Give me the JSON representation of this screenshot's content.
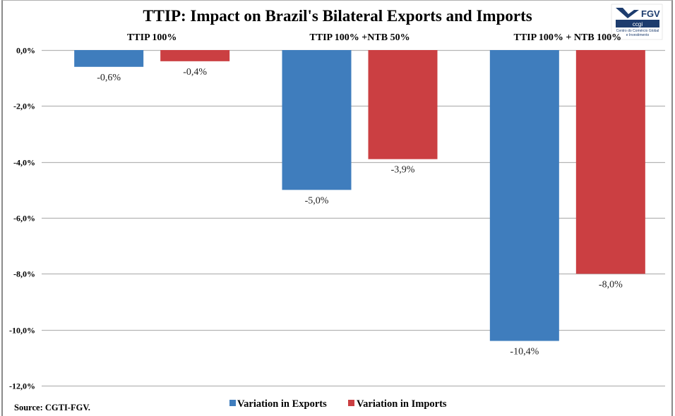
{
  "logo": {
    "brand": "FGV",
    "unit": "ccgi",
    "subtitle_line1": "Centro do Comércio Global",
    "subtitle_line2": "e Investimento"
  },
  "source": "Source: CGTI-FGV.",
  "colors": {
    "exports": "#3f7dbd",
    "imports": "#cb3f42",
    "gridline": "#b4b4b4",
    "logo_navy": "#1d3c6e"
  },
  "chart_data": {
    "type": "bar",
    "title": "TTIP: Impact on Brazil's Bilateral Exports and Imports",
    "xlabel": "",
    "ylabel": "",
    "categories": [
      "TTIP 100%",
      "TTIP 100% +NTB 50%",
      "TTIP 100% + NTB 100%"
    ],
    "series": [
      {
        "name": "Variation in Exports",
        "values": [
          -0.6,
          -5.0,
          -10.4
        ],
        "labels": [
          "-0,6%",
          "-5,0%",
          "-10,4%"
        ]
      },
      {
        "name": "Variation in Imports",
        "values": [
          -0.4,
          -3.9,
          -8.0
        ],
        "labels": [
          "-0,4%",
          "-3,9%",
          "-8,0%"
        ]
      }
    ],
    "ylim": [
      -12,
      0
    ],
    "yticks": [
      0,
      -2,
      -4,
      -6,
      -8,
      -10,
      -12
    ],
    "ytick_labels": [
      "0,0%",
      "-2,0%",
      "-4,0%",
      "-6,0%",
      "-8,0%",
      "-10,0%",
      "-12,0%"
    ],
    "grid": true,
    "category_labels_position": "top",
    "legend": "bottom-center"
  }
}
